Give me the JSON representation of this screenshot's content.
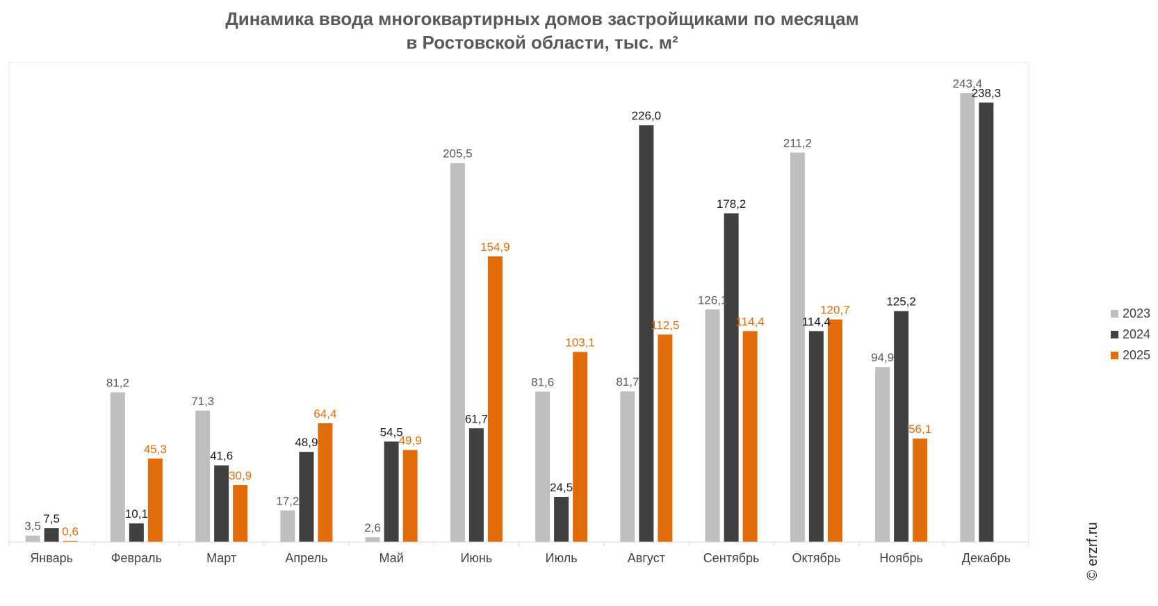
{
  "title_line1": "Динамика ввода многоквартирных домов застройщиками по месяцам",
  "title_line2": "в Ростовской области, тыс. м²",
  "watermark": "© erzrf.ru",
  "chart_data": {
    "type": "bar",
    "title": "Динамика ввода многоквартирных домов застройщиками по месяцам в Ростовской области, тыс. м²",
    "categories": [
      "Январь",
      "Февраль",
      "Март",
      "Апрель",
      "Май",
      "Июнь",
      "Июль",
      "Август",
      "Сентябрь",
      "Октябрь",
      "Ноябрь",
      "Декабрь"
    ],
    "series": [
      {
        "name": "2023",
        "color": "#bfbfbf",
        "label_color": "#595959",
        "values": [
          3.5,
          81.2,
          71.3,
          17.2,
          2.6,
          205.5,
          81.6,
          81.7,
          126.1,
          211.2,
          94.9,
          243.4
        ],
        "labels": [
          "3,5",
          "81,2",
          "71,3",
          "17,2",
          "2,6",
          "205,5",
          "81,6",
          "81,7",
          "126,1",
          "211,2",
          "94,9",
          "243,4"
        ]
      },
      {
        "name": "2024",
        "color": "#404040",
        "label_color": "#1a1a1a",
        "values": [
          7.5,
          10.1,
          41.6,
          48.9,
          54.5,
          61.7,
          24.5,
          226.0,
          178.2,
          114.4,
          125.2,
          238.3
        ],
        "labels": [
          "7,5",
          "10,1",
          "41,6",
          "48,9",
          "54,5",
          "61,7",
          "24,5",
          "226,0",
          "178,2",
          "114,4",
          "125,2",
          "238,3"
        ]
      },
      {
        "name": "2025",
        "color": "#e36c0a",
        "label_color": "#e36c0a",
        "values": [
          0.6,
          45.3,
          30.9,
          64.4,
          49.9,
          154.9,
          103.1,
          112.5,
          114.4,
          120.7,
          56.1,
          null
        ],
        "labels": [
          "0,6",
          "45,3",
          "30,9",
          "64,4",
          "49,9",
          "154,9",
          "103,1",
          "112,5",
          "114,4",
          "120,7",
          "56,1",
          ""
        ]
      }
    ],
    "ylim": [
      0,
      260
    ],
    "grid": false,
    "legend_position": "right"
  }
}
